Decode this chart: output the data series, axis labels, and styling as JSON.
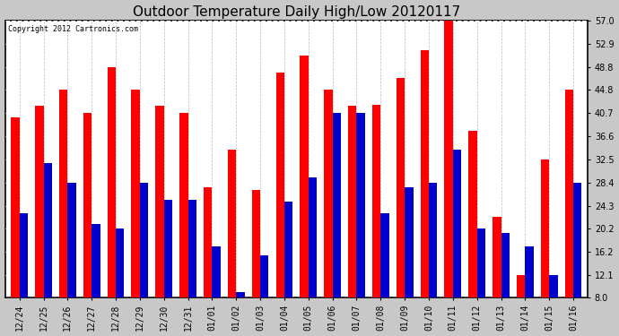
{
  "title": "Outdoor Temperature Daily High/Low 20120117",
  "copyright": "Copyright 2012 Cartronics.com",
  "labels": [
    "12/24",
    "12/25",
    "12/26",
    "12/27",
    "12/28",
    "12/29",
    "12/30",
    "12/31",
    "01/01",
    "01/02",
    "01/03",
    "01/04",
    "01/05",
    "01/06",
    "01/07",
    "01/08",
    "01/09",
    "01/10",
    "01/11",
    "01/12",
    "01/13",
    "01/14",
    "01/15",
    "01/16"
  ],
  "highs": [
    39.9,
    41.9,
    44.8,
    40.7,
    48.8,
    44.8,
    41.9,
    40.7,
    27.5,
    34.2,
    27.0,
    47.8,
    50.9,
    44.8,
    41.9,
    42.1,
    46.9,
    51.8,
    57.0,
    37.5,
    22.3,
    12.1,
    32.5,
    44.8
  ],
  "lows": [
    23.0,
    31.9,
    28.4,
    21.0,
    20.2,
    28.4,
    25.3,
    25.3,
    17.1,
    9.0,
    15.5,
    25.0,
    29.3,
    40.7,
    40.7,
    23.0,
    27.5,
    28.4,
    34.2,
    20.2,
    19.5,
    17.1,
    12.1,
    28.4
  ],
  "high_color": "#ff0000",
  "low_color": "#0000cc",
  "bg_color": "#c8c8c8",
  "plot_bg_color": "#ffffff",
  "grid_color": "#aaaaaa",
  "yticks": [
    8.0,
    12.1,
    16.2,
    20.2,
    24.3,
    28.4,
    32.5,
    36.6,
    40.7,
    44.8,
    48.8,
    52.9,
    57.0
  ],
  "ymin": 8.0,
  "ymax": 57.0,
  "title_fontsize": 11,
  "tick_fontsize": 7,
  "copyright_fontsize": 6
}
